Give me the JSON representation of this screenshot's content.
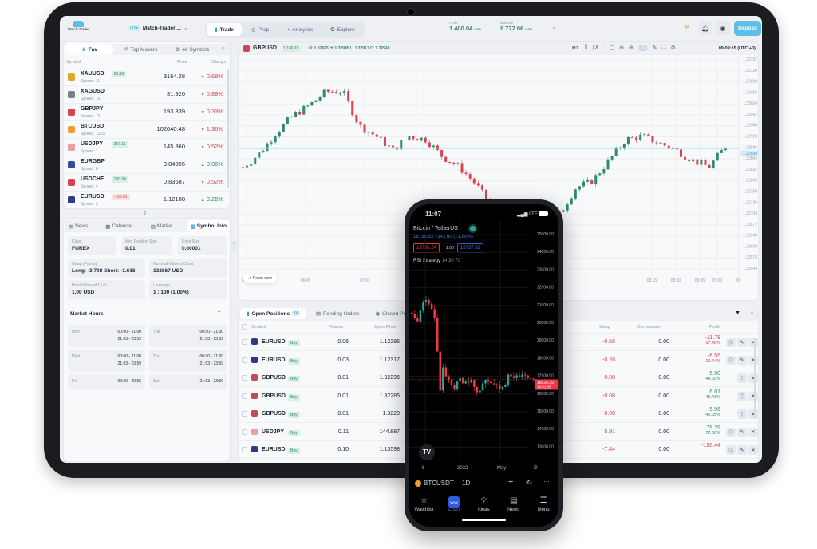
{
  "app": {
    "logo": "Match-Trader",
    "account_badge": "LIVE",
    "account_name": "Match-Trader ..."
  },
  "nav": [
    {
      "label": "Trade",
      "icon": "bar-chart-icon"
    },
    {
      "label": "Prop",
      "icon": "prop-icon"
    },
    {
      "label": "Analytics",
      "icon": "pie-chart-icon"
    },
    {
      "label": "Explore",
      "icon": "compass-icon"
    }
  ],
  "account": {
    "profit_label": "Profit",
    "profit": "1 400.04",
    "balance_label": "Balance",
    "balance": "9 777.06",
    "currency": "USD",
    "deposit": "Deposit"
  },
  "watchlist": {
    "tabs": [
      "Fav",
      "Top Movers",
      "All Symbols"
    ],
    "headers": {
      "symbol": "Symbol",
      "price": "Price",
      "change": "Change"
    },
    "rows": [
      {
        "symbol": "XAUUSD",
        "spread": "Spread: 11",
        "badge": "25.88",
        "badge_type": "pos",
        "price": "3164.28",
        "change": "0.68%",
        "dir": "down",
        "color": "#e0a82a"
      },
      {
        "symbol": "XAGUSD",
        "spread": "Spread: 16",
        "badge": "",
        "price": "31.920",
        "change": "0.89%",
        "dir": "down",
        "color": "#7a7f88"
      },
      {
        "symbol": "GBPJPY",
        "spread": "Spread: 15",
        "badge": "",
        "price": "193.839",
        "change": "0.33%",
        "dir": "down",
        "color": "#d8434f"
      },
      {
        "symbol": "BTCUSD",
        "spread": "Spread: 1315",
        "badge": "",
        "price": "102040.48",
        "change": "1.36%",
        "dir": "down",
        "color": "#f29a33"
      },
      {
        "symbol": "USDJPY",
        "spread": "Spread: 1",
        "badge": "257.11",
        "badge_type": "pos",
        "price": "145.860",
        "change": "0.52%",
        "dir": "down",
        "color": "#e8a0a6"
      },
      {
        "symbol": "EURGBP",
        "spread": "Spread: 8",
        "badge": "",
        "price": "0.84355",
        "change": "0.06%",
        "dir": "up",
        "color": "#3a4a9a"
      },
      {
        "symbol": "USDCHF",
        "spread": "Spread: 4",
        "badge": "130.04",
        "badge_type": "pos",
        "price": "0.83687",
        "change": "0.52%",
        "dir": "down",
        "color": "#d8434f"
      },
      {
        "symbol": "EURUSD",
        "spread": "Spread: 3",
        "badge": "-168.01",
        "badge_type": "neg",
        "price": "1.12108",
        "change": "0.26%",
        "dir": "up",
        "color": "#2e3a8a"
      }
    ]
  },
  "info": {
    "tabs": [
      "News",
      "Calendar",
      "Market",
      "Symbol Info"
    ],
    "cards": [
      {
        "label": "Class",
        "value": "FOREX"
      },
      {
        "label": "Min. Position Size",
        "value": "0.01"
      },
      {
        "label": "Point Size",
        "value": "0.00001"
      },
      {
        "label": "Swap (Points)",
        "value": "Long: -3.708 Short: -3.616"
      },
      {
        "label": "Nominal Value of 1 Lot",
        "value": "132867 USD"
      },
      {
        "label": "Point Value of 1 Lot",
        "value": "1.00 USD"
      },
      {
        "label": "Leverage",
        "value": "1 : 100 (1.00%)"
      }
    ],
    "market_hours_title": "Market Hours",
    "hours": [
      {
        "day": "Mon",
        "times": [
          "00:00 - 21:00",
          "21:03 - 23:59"
        ]
      },
      {
        "day": "Tue",
        "times": [
          "00:00 - 21:00",
          "21:03 - 23:59"
        ]
      },
      {
        "day": "Wed",
        "times": [
          "00:00 - 21:00",
          "21:03 - 23:59"
        ]
      },
      {
        "day": "Thu",
        "times": [
          "00:00 - 21:00",
          "21:03 - 23:59"
        ]
      },
      {
        "day": "Fri",
        "times": [
          "00:00 - 20:55"
        ]
      },
      {
        "day": "Sun",
        "times": [
          "21:03 - 23:59"
        ]
      }
    ]
  },
  "chart": {
    "symbol": "GBPUSD",
    "badge": "1 166.19",
    "ohlc": {
      "o": "1.32925",
      "h": "1.32945",
      "l": "1.32917",
      "c": "1.32940"
    },
    "timeframe": "M1",
    "clock": "09:09:15 (UTC +0)",
    "reset": "Reset view",
    "price_ticks": [
      "1.33152",
      "1.33120",
      "1.33088",
      "1.33056",
      "1.33024",
      "1.32992",
      "1.32960",
      "1.32928",
      "1.32896",
      "1.32864",
      "1.32832",
      "1.32800",
      "1.32768",
      "1.32736",
      "1.32704",
      "1.32672",
      "1.32640",
      "1.32608",
      "1.32576",
      "1.32544"
    ],
    "current_price": "1.32896",
    "time_ticks": [
      "06:30",
      "06:45",
      "07:00",
      "07:15",
      "08:15",
      "08:30",
      "08:45",
      "09:00",
      "09:"
    ],
    "keypoints": [
      1.3284,
      1.3288,
      1.3294,
      1.3299,
      1.3302,
      1.3306,
      1.3306,
      1.3296,
      1.3293,
      1.3289,
      1.3293,
      1.3292,
      1.3287,
      1.3284,
      1.3279,
      1.3272,
      1.327,
      1.3272,
      1.3268,
      1.327,
      1.3278,
      1.328,
      1.3286,
      1.3292,
      1.3293,
      1.3291,
      1.3289,
      1.3286,
      1.3284,
      1.329
    ]
  },
  "positions": {
    "tabs": [
      {
        "label": "Open Positions",
        "count": "14"
      },
      {
        "label": "Pending Orders"
      },
      {
        "label": "Closed Positions"
      }
    ],
    "headers": {
      "symbol": "Symbol",
      "volume": "Volume",
      "open_price": "Open Price",
      "swap": "Swap",
      "commission": "Commission",
      "profit": "Profit"
    },
    "rows": [
      {
        "symbol": "EURUSD",
        "side": "Buy",
        "volume": "0.06",
        "open": "1.12295",
        "swap": "-0.56",
        "commission": "0.00",
        "profit": "-11.78",
        "pct": "-17.48%",
        "edit": true
      },
      {
        "symbol": "EURUSD",
        "side": "Buy",
        "volume": "0.03",
        "open": "1.12317",
        "swap": "-0.28",
        "commission": "0.00",
        "profit": "-6.55",
        "pct": "-19.44%",
        "edit": true
      },
      {
        "symbol": "GBPUSD",
        "side": "Buy",
        "volume": "0.01",
        "open": "1.32296",
        "swap": "-0.08",
        "commission": "0.00",
        "profit": "5.90",
        "pct": "44.60%",
        "edit": false
      },
      {
        "symbol": "GBPUSD",
        "side": "Buy",
        "volume": "0.01",
        "open": "1.32285",
        "swap": "-0.08",
        "commission": "0.00",
        "profit": "6.01",
        "pct": "45.43%",
        "edit": false
      },
      {
        "symbol": "GBPUSD",
        "side": "Buy",
        "volume": "0.01",
        "open": "1.3229",
        "swap": "-0.08",
        "commission": "0.00",
        "profit": "5.96",
        "pct": "45.05%",
        "edit": false
      },
      {
        "symbol": "USDJPY",
        "side": "Buy",
        "volume": "0.11",
        "open": "144.887",
        "swap": "5.91",
        "commission": "0.00",
        "profit": "79.29",
        "pct": "72.08%",
        "edit": true
      },
      {
        "symbol": "EURUSD",
        "side": "Buy",
        "volume": "0.10",
        "open": "1.13598",
        "swap": "-7.44",
        "commission": "0.00",
        "profit": "-156.44",
        "pct": "",
        "edit": true
      }
    ]
  },
  "phone": {
    "time": "11:07",
    "network": "LTE",
    "pair": "Bitcoin / TetherUS",
    "quote": "18736.53  −342.60 (−1.80%)",
    "sell": "18736.24",
    "spread": "1.08",
    "buy": "18737.32",
    "indicator": "RSI Strategy",
    "indicator_params": "14 30 70",
    "price_ticks": [
      "25000.00",
      "24000.00",
      "23000.00",
      "22000.00",
      "21000.00",
      "20000.00",
      "19000.00",
      "18000.00",
      "17000.00",
      "16000.00",
      "15000.00",
      "14000.00",
      "13000.00"
    ],
    "last_price": "16826.39",
    "countdown": "14:51:26",
    "time_ticks": [
      "6",
      "2022",
      "May"
    ],
    "symbol": "BTCUSDT",
    "interval": "1D",
    "closes": [
      20500,
      20300,
      20100,
      20700,
      21200,
      21300,
      21100,
      20800,
      20300,
      18400,
      16200,
      17500,
      17000,
      16800,
      16500,
      16300,
      16700,
      16900,
      16600,
      16700,
      16650,
      16800,
      16400,
      16100,
      16200,
      16600,
      16800,
      16700,
      16600,
      16550,
      16500,
      16300,
      16400,
      16500,
      17100,
      17000,
      16900,
      17050,
      16950,
      17100,
      17050,
      16900,
      16850,
      16826
    ],
    "tabs": [
      {
        "label": "Watchlist"
      },
      {
        "label": "Chart"
      },
      {
        "label": "Ideas"
      },
      {
        "label": "News"
      },
      {
        "label": "Menu"
      }
    ]
  },
  "colors": {
    "up": "#2e8a6a",
    "down": "#d8434f",
    "accent": "#5cbfe8",
    "phone_up": "#26a69a",
    "phone_down": "#f23645"
  }
}
